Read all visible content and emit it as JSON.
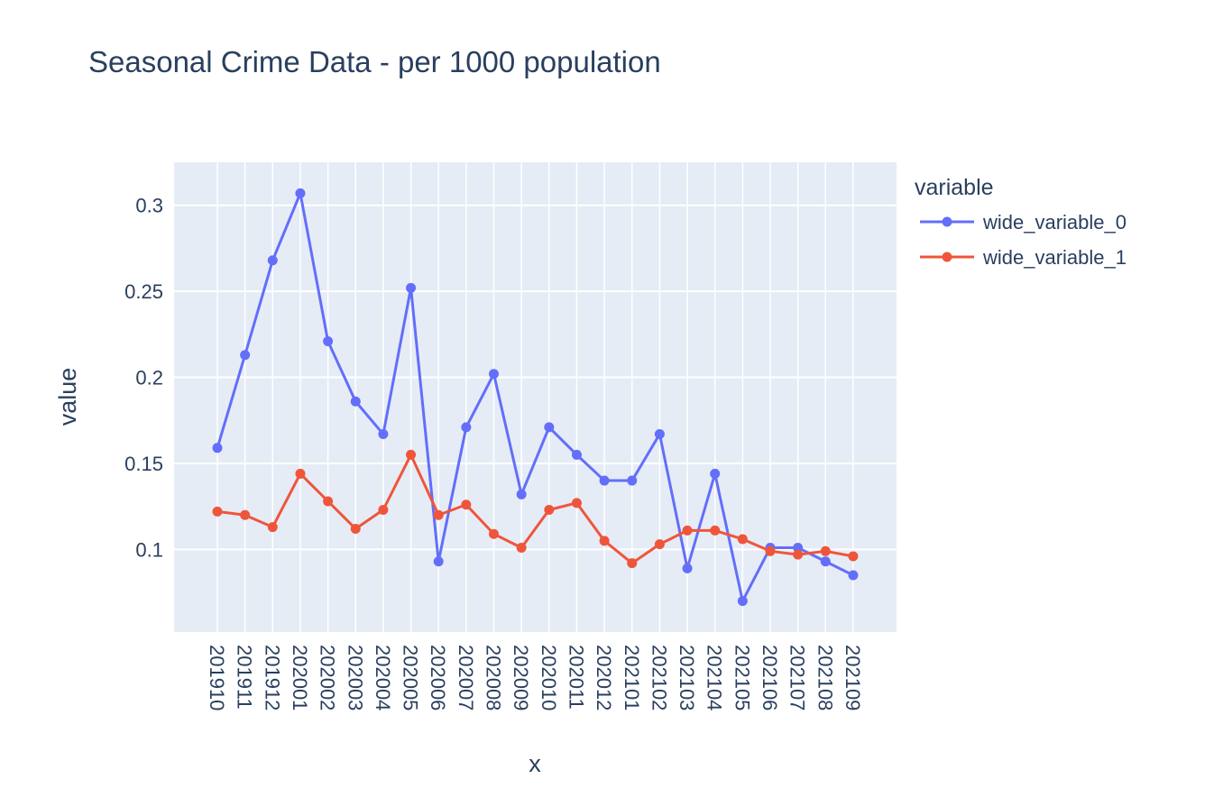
{
  "chart_data": {
    "type": "line",
    "title": "Seasonal Crime Data - per 1000 population",
    "xlabel": "x",
    "ylabel": "value",
    "categories": [
      "201910",
      "201911",
      "201912",
      "202001",
      "202002",
      "202003",
      "202004",
      "202005",
      "202006",
      "202007",
      "202008",
      "202009",
      "202010",
      "202011",
      "202012",
      "202101",
      "202102",
      "202103",
      "202104",
      "202105",
      "202106",
      "202107",
      "202108",
      "202109"
    ],
    "ylim": [
      0.052,
      0.325
    ],
    "yticks": [
      0.1,
      0.15,
      0.2,
      0.25,
      0.3
    ],
    "ytick_labels": [
      "0.1",
      "0.15",
      "0.2",
      "0.25",
      "0.3"
    ],
    "grid": true,
    "legend": {
      "title": "variable",
      "placement": "right"
    },
    "series": [
      {
        "name": "wide_variable_0",
        "color": "#636efa",
        "values": [
          0.159,
          0.213,
          0.268,
          0.307,
          0.221,
          0.186,
          0.167,
          0.252,
          0.093,
          0.171,
          0.202,
          0.132,
          0.171,
          0.155,
          0.14,
          0.14,
          0.167,
          0.089,
          0.144,
          0.07,
          0.101,
          0.101,
          0.093,
          0.085
        ]
      },
      {
        "name": "wide_variable_1",
        "color": "#ef553b",
        "values": [
          0.122,
          0.12,
          0.113,
          0.144,
          0.128,
          0.112,
          0.123,
          0.155,
          0.12,
          0.126,
          0.109,
          0.101,
          0.123,
          0.127,
          0.105,
          0.092,
          0.103,
          0.111,
          0.111,
          0.106,
          0.099,
          0.097,
          0.099,
          0.096
        ]
      }
    ]
  }
}
